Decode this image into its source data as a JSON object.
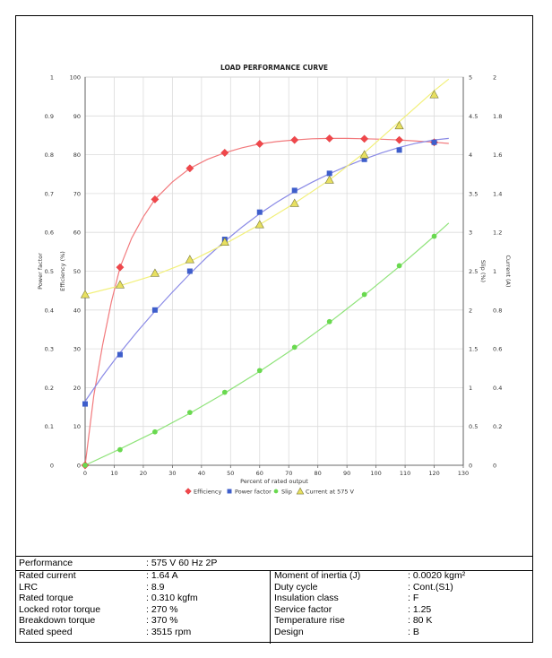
{
  "chart_data": {
    "type": "scatter",
    "title": "LOAD PERFORMANCE CURVE",
    "xlabel": "Percent of rated output",
    "xlim": [
      0,
      130
    ],
    "x_ticks": [
      "0",
      "10",
      "20",
      "30",
      "40",
      "50",
      "60",
      "70",
      "80",
      "90",
      "100",
      "110",
      "120",
      "130"
    ],
    "axes": {
      "power_factor": {
        "label": "Power factor",
        "lim": [
          0,
          1
        ],
        "ticks": [
          "0",
          "0.1",
          "0.2",
          "0.3",
          "0.4",
          "0.5",
          "0.6",
          "0.7",
          "0.8",
          "0.9",
          "1"
        ]
      },
      "efficiency": {
        "label": "Efficiency (%)",
        "lim": [
          0,
          100
        ],
        "ticks": [
          "0",
          "10",
          "20",
          "30",
          "40",
          "50",
          "60",
          "70",
          "80",
          "90",
          "100"
        ]
      },
      "slip": {
        "label": "Slip (%)",
        "lim": [
          0,
          5
        ],
        "ticks": [
          "0",
          "0.5",
          "1",
          "1.5",
          "2",
          "2.5",
          "3",
          "3.5",
          "4",
          "4.5",
          "5"
        ]
      },
      "current": {
        "label": "Current (A)",
        "lim": [
          0,
          2
        ],
        "ticks": [
          "0",
          "0.2",
          "0.4",
          "0.6",
          "0.8",
          "1",
          "1.2",
          "1.4",
          "1.6",
          "1.8",
          "2"
        ]
      }
    },
    "grid": true,
    "legend_position": "bottom",
    "series": [
      {
        "name": "Efficiency",
        "axis": "efficiency",
        "marker": "diamond",
        "color": "#f0474b",
        "line_color": "#f27a7d",
        "points": [
          [
            0,
            0
          ],
          [
            12,
            51
          ],
          [
            24,
            68.5
          ],
          [
            36,
            76.5
          ],
          [
            48,
            80.5
          ],
          [
            60,
            82.8
          ],
          [
            72,
            83.8
          ],
          [
            84,
            84.2
          ],
          [
            96,
            84.1
          ],
          [
            108,
            83.8
          ],
          [
            120,
            83.2
          ]
        ],
        "curve": [
          [
            0,
            0
          ],
          [
            3,
            18
          ],
          [
            6,
            31
          ],
          [
            9,
            42
          ],
          [
            12,
            51
          ],
          [
            16,
            58.5
          ],
          [
            20,
            64
          ],
          [
            24,
            68.5
          ],
          [
            30,
            73
          ],
          [
            36,
            76.5
          ],
          [
            42,
            78.8
          ],
          [
            48,
            80.5
          ],
          [
            54,
            81.8
          ],
          [
            60,
            82.8
          ],
          [
            66,
            83.4
          ],
          [
            72,
            83.8
          ],
          [
            78,
            84.1
          ],
          [
            84,
            84.2
          ],
          [
            90,
            84.2
          ],
          [
            96,
            84.1
          ],
          [
            102,
            84
          ],
          [
            108,
            83.8
          ],
          [
            114,
            83.5
          ],
          [
            120,
            83.2
          ],
          [
            125,
            82.9
          ]
        ]
      },
      {
        "name": "Power factor",
        "axis": "power_factor",
        "marker": "square",
        "color": "#3e5ecb",
        "line_color": "#8a8ae6",
        "points": [
          [
            0,
            0.158
          ],
          [
            12,
            0.285
          ],
          [
            24,
            0.4
          ],
          [
            36,
            0.5
          ],
          [
            48,
            0.582
          ],
          [
            60,
            0.652
          ],
          [
            72,
            0.708
          ],
          [
            84,
            0.752
          ],
          [
            96,
            0.788
          ],
          [
            108,
            0.812
          ],
          [
            120,
            0.832
          ]
        ],
        "curve": [
          [
            0,
            0.165
          ],
          [
            6,
            0.23
          ],
          [
            12,
            0.29
          ],
          [
            18,
            0.345
          ],
          [
            24,
            0.397
          ],
          [
            30,
            0.446
          ],
          [
            36,
            0.493
          ],
          [
            42,
            0.537
          ],
          [
            48,
            0.577
          ],
          [
            54,
            0.614
          ],
          [
            60,
            0.648
          ],
          [
            66,
            0.678
          ],
          [
            72,
            0.705
          ],
          [
            78,
            0.729
          ],
          [
            84,
            0.751
          ],
          [
            90,
            0.771
          ],
          [
            96,
            0.789
          ],
          [
            102,
            0.805
          ],
          [
            108,
            0.819
          ],
          [
            114,
            0.83
          ],
          [
            120,
            0.838
          ],
          [
            125,
            0.842
          ]
        ]
      },
      {
        "name": "Slip",
        "axis": "slip",
        "marker": "circle",
        "color": "#69d94f",
        "line_color": "#8fe37a",
        "points": [
          [
            0,
            0
          ],
          [
            12,
            0.2
          ],
          [
            24,
            0.43
          ],
          [
            36,
            0.68
          ],
          [
            48,
            0.94
          ],
          [
            60,
            1.22
          ],
          [
            72,
            1.52
          ],
          [
            84,
            1.85
          ],
          [
            96,
            2.2
          ],
          [
            108,
            2.57
          ],
          [
            120,
            2.95
          ]
        ],
        "curve": [
          [
            0,
            0
          ],
          [
            12,
            0.21
          ],
          [
            24,
            0.43
          ],
          [
            36,
            0.67
          ],
          [
            48,
            0.93
          ],
          [
            60,
            1.21
          ],
          [
            72,
            1.51
          ],
          [
            84,
            1.84
          ],
          [
            96,
            2.19
          ],
          [
            108,
            2.56
          ],
          [
            120,
            2.95
          ],
          [
            125,
            3.12
          ]
        ]
      },
      {
        "name": "Current at 575 V",
        "axis": "current",
        "marker": "triangle",
        "color": "#e8e060",
        "line_color": "#f2f07a",
        "points": [
          [
            0,
            0.88
          ],
          [
            12,
            0.93
          ],
          [
            24,
            0.99
          ],
          [
            36,
            1.06
          ],
          [
            48,
            1.15
          ],
          [
            60,
            1.24
          ],
          [
            72,
            1.35
          ],
          [
            84,
            1.47
          ],
          [
            96,
            1.6
          ],
          [
            108,
            1.75
          ],
          [
            120,
            1.91
          ]
        ],
        "curve": [
          [
            0,
            0.88
          ],
          [
            12,
            0.925
          ],
          [
            24,
            0.98
          ],
          [
            36,
            1.05
          ],
          [
            48,
            1.14
          ],
          [
            60,
            1.24
          ],
          [
            72,
            1.35
          ],
          [
            84,
            1.47
          ],
          [
            96,
            1.61
          ],
          [
            108,
            1.77
          ],
          [
            120,
            1.93
          ],
          [
            125,
            1.99
          ]
        ]
      }
    ]
  },
  "table": {
    "performance_label": "Performance",
    "performance_value": ": 575 V 60 Hz 2P",
    "left": [
      {
        "name": "Rated current",
        "value": ": 1.64 A"
      },
      {
        "name": "LRC",
        "value": ": 8.9"
      },
      {
        "name": "Rated torque",
        "value": ": 0.310 kgfm"
      },
      {
        "name": "Locked rotor torque",
        "value": ": 270 %"
      },
      {
        "name": "Breakdown torque",
        "value": ": 370 %"
      },
      {
        "name": "Rated speed",
        "value": ": 3515 rpm"
      }
    ],
    "right": [
      {
        "name": "Moment of inertia (J)",
        "value": ": 0.0020 kgm²"
      },
      {
        "name": "Duty cycle",
        "value": ": Cont.(S1)"
      },
      {
        "name": "Insulation class",
        "value": ": F"
      },
      {
        "name": "Service factor",
        "value": ": 1.25"
      },
      {
        "name": "Temperature rise",
        "value": ": 80 K"
      },
      {
        "name": "Design",
        "value": ": B"
      }
    ]
  }
}
